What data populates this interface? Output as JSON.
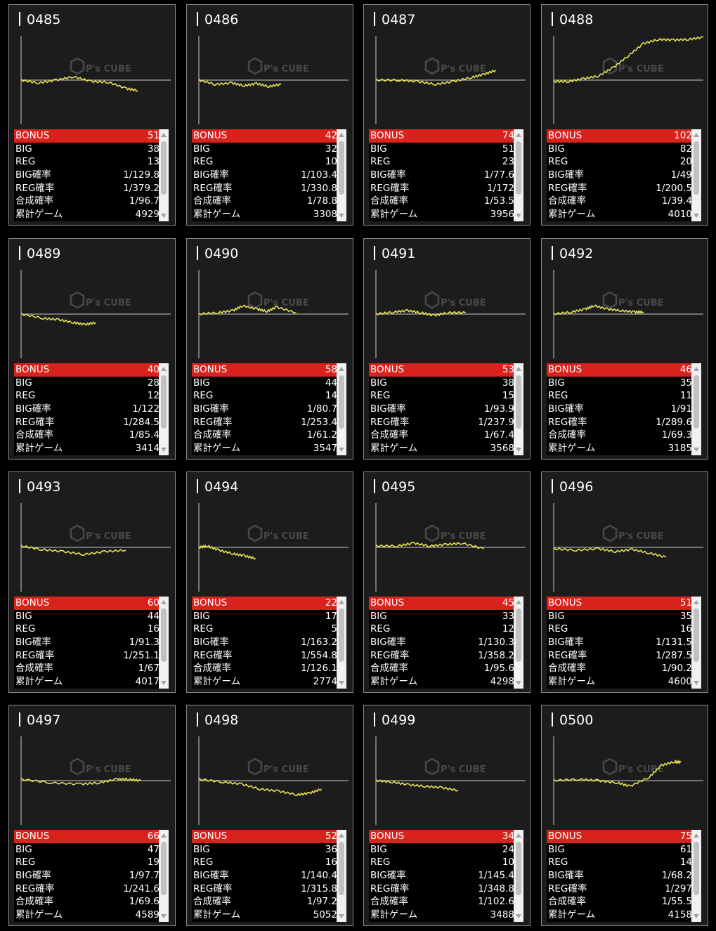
{
  "labels": {
    "bonus": "BONUS",
    "big": "BIG",
    "reg": "REG",
    "big_rate": "BIG確率",
    "reg_rate": "REG確率",
    "total_rate": "合成確率",
    "games": "累計ゲーム"
  },
  "colors": {
    "background": "#000000",
    "card": "#1c1c1c",
    "bonus_bar": "#d9221c",
    "graph_line": "#e8e054",
    "axis": "#cccccc"
  },
  "watermark": {
    "brand": "P's CUBE"
  },
  "machines": [
    {
      "id": "0485",
      "bonus": "51",
      "big": "38",
      "reg": "13",
      "big_rate": "1/129.8",
      "reg_rate": "1/379.2",
      "total_rate": "1/96.7",
      "games": "4929"
    },
    {
      "id": "0486",
      "bonus": "42",
      "big": "32",
      "reg": "10",
      "big_rate": "1/103.4",
      "reg_rate": "1/330.8",
      "total_rate": "1/78.8",
      "games": "3308"
    },
    {
      "id": "0487",
      "bonus": "74",
      "big": "51",
      "reg": "23",
      "big_rate": "1/77.6",
      "reg_rate": "1/172",
      "total_rate": "1/53.5",
      "games": "3956"
    },
    {
      "id": "0488",
      "bonus": "102",
      "big": "82",
      "reg": "20",
      "big_rate": "1/49",
      "reg_rate": "1/200.5",
      "total_rate": "1/39.4",
      "games": "4010"
    },
    {
      "id": "0489",
      "bonus": "40",
      "big": "28",
      "reg": "12",
      "big_rate": "1/122",
      "reg_rate": "1/284.5",
      "total_rate": "1/85.4",
      "games": "3414"
    },
    {
      "id": "0490",
      "bonus": "58",
      "big": "44",
      "reg": "14",
      "big_rate": "1/80.7",
      "reg_rate": "1/253.4",
      "total_rate": "1/61.2",
      "games": "3547"
    },
    {
      "id": "0491",
      "bonus": "53",
      "big": "38",
      "reg": "15",
      "big_rate": "1/93.9",
      "reg_rate": "1/237.9",
      "total_rate": "1/67.4",
      "games": "3568"
    },
    {
      "id": "0492",
      "bonus": "46",
      "big": "35",
      "reg": "11",
      "big_rate": "1/91",
      "reg_rate": "1/289.6",
      "total_rate": "1/69.3",
      "games": "3185"
    },
    {
      "id": "0493",
      "bonus": "60",
      "big": "44",
      "reg": "16",
      "big_rate": "1/91.3",
      "reg_rate": "1/251.1",
      "total_rate": "1/67",
      "games": "4017"
    },
    {
      "id": "0494",
      "bonus": "22",
      "big": "17",
      "reg": "5",
      "big_rate": "1/163.2",
      "reg_rate": "1/554.8",
      "total_rate": "1/126.1",
      "games": "2774"
    },
    {
      "id": "0495",
      "bonus": "45",
      "big": "33",
      "reg": "12",
      "big_rate": "1/130.3",
      "reg_rate": "1/358.2",
      "total_rate": "1/95.6",
      "games": "4298"
    },
    {
      "id": "0496",
      "bonus": "51",
      "big": "35",
      "reg": "16",
      "big_rate": "1/131.5",
      "reg_rate": "1/287.5",
      "total_rate": "1/90.2",
      "games": "4600"
    },
    {
      "id": "0497",
      "bonus": "66",
      "big": "47",
      "reg": "19",
      "big_rate": "1/97.7",
      "reg_rate": "1/241.6",
      "total_rate": "1/69.6",
      "games": "4589"
    },
    {
      "id": "0498",
      "bonus": "52",
      "big": "36",
      "reg": "16",
      "big_rate": "1/140.4",
      "reg_rate": "1/315.8",
      "total_rate": "1/97.2",
      "games": "5052"
    },
    {
      "id": "0499",
      "bonus": "34",
      "big": "24",
      "reg": "10",
      "big_rate": "1/145.4",
      "reg_rate": "1/348.8",
      "total_rate": "1/102.6",
      "games": "3488"
    },
    {
      "id": "0500",
      "bonus": "75",
      "big": "61",
      "reg": "14",
      "big_rate": "1/68.2",
      "reg_rate": "1/297",
      "total_rate": "1/55.5",
      "games": "4158"
    }
  ]
}
